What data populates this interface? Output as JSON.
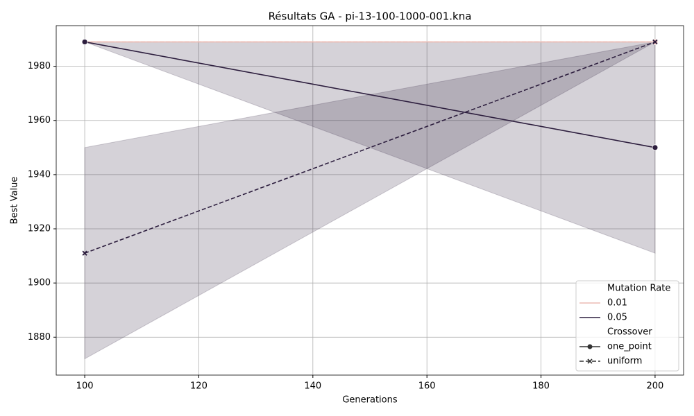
{
  "chart_data": {
    "type": "line",
    "title": "Résultats GA - pi-13-100-1000-001.kna",
    "x_label": "Generations",
    "y_label": "Best Value",
    "x": [
      100,
      200
    ],
    "xlim": [
      95,
      205
    ],
    "ylim": [
      1866,
      1995
    ],
    "xticks": [
      100,
      120,
      140,
      160,
      180,
      200
    ],
    "yticks": [
      1880,
      1900,
      1920,
      1940,
      1960,
      1980
    ],
    "grid": true,
    "legend": {
      "position": "lower right",
      "hue_title": "Mutation Rate",
      "hue": [
        {
          "label": "0.01",
          "color": "#ecbcb4"
        },
        {
          "label": "0.05",
          "color": "#2d1e3e"
        }
      ],
      "style_title": "Crossover",
      "style": [
        {
          "label": "one_point",
          "dash": "solid",
          "marker": "circle"
        },
        {
          "label": "uniform",
          "dash": "dashed",
          "marker": "x"
        }
      ]
    },
    "series": [
      {
        "hue": 0,
        "style": 0,
        "values": [
          1989,
          1989
        ],
        "lower": [
          1989,
          1989
        ],
        "upper": [
          1989,
          1989
        ]
      },
      {
        "hue": 0,
        "style": 1,
        "values": [
          1989,
          1989
        ],
        "lower": [
          1989,
          1989
        ],
        "upper": [
          1989,
          1989
        ]
      },
      {
        "hue": 1,
        "style": 0,
        "values": [
          1989,
          1950
        ],
        "lower": [
          1989,
          1911
        ],
        "upper": [
          1989,
          1989
        ]
      },
      {
        "hue": 1,
        "style": 1,
        "values": [
          1911,
          1989
        ],
        "lower": [
          1872,
          1989
        ],
        "upper": [
          1950,
          1989
        ]
      }
    ]
  }
}
